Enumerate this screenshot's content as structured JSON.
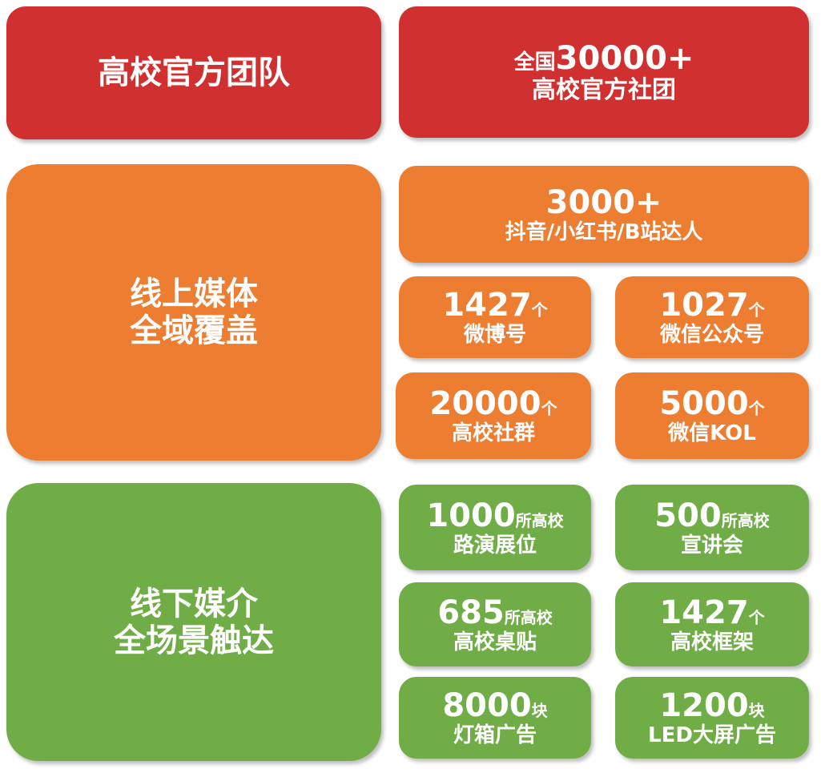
{
  "colors": {
    "red": "#d0302f",
    "orange": "#ed7d31",
    "green": "#70ad47"
  },
  "sections": [
    {
      "id": "official-team",
      "color": "red",
      "title_lines": [
        "高校官方团队"
      ]
    },
    {
      "id": "online-media",
      "color": "orange",
      "title_lines": [
        "线上媒体",
        "全域覆盖"
      ]
    },
    {
      "id": "offline-media",
      "color": "green",
      "title_lines": [
        "线下媒介",
        "全场景触达"
      ]
    }
  ],
  "stats": [
    {
      "color": "red",
      "prefix": "全国",
      "number": "30000+",
      "unit": "",
      "label": "高校官方社团"
    },
    {
      "color": "orange",
      "prefix": "",
      "number": "3000+",
      "unit": "",
      "label": "抖音/小红书/B站达人"
    },
    {
      "color": "orange",
      "prefix": "",
      "number": "1427",
      "unit": "个",
      "label": "微博号"
    },
    {
      "color": "orange",
      "prefix": "",
      "number": "1027",
      "unit": "个",
      "label": "微信公众号"
    },
    {
      "color": "orange",
      "prefix": "",
      "number": "20000",
      "unit": "个",
      "label": "高校社群"
    },
    {
      "color": "orange",
      "prefix": "",
      "number": "5000",
      "unit": "个",
      "label": "微信KOL"
    },
    {
      "color": "green",
      "prefix": "",
      "number": "1000",
      "unit": "所高校",
      "label": "路演展位"
    },
    {
      "color": "green",
      "prefix": "",
      "number": "500",
      "unit": "所高校",
      "label": "宣讲会"
    },
    {
      "color": "green",
      "prefix": "",
      "number": "685",
      "unit": "所高校",
      "label": "高校桌贴"
    },
    {
      "color": "green",
      "prefix": "",
      "number": "1427",
      "unit": "个",
      "label": "高校框架"
    },
    {
      "color": "green",
      "prefix": "",
      "number": "8000",
      "unit": "块",
      "label": "灯箱广告"
    },
    {
      "color": "green",
      "prefix": "",
      "number": "1200",
      "unit": "块",
      "label": "LED大屏广告"
    }
  ]
}
